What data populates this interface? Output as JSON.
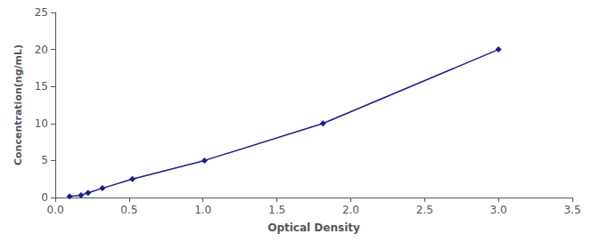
{
  "chart_data": {
    "type": "line",
    "x": [
      0.097,
      0.174,
      0.222,
      0.319,
      0.522,
      1.01,
      1.812,
      3.0
    ],
    "values": [
      0.156,
      0.312,
      0.625,
      1.25,
      2.5,
      5.0,
      10.0,
      20.0
    ],
    "color": "#1c1c8c",
    "marker": "diamond",
    "xlabel": "Optical Density",
    "ylabel": "Concentration(ng/mL)",
    "xlim": [
      0,
      3.5
    ],
    "ylim": [
      0,
      25
    ],
    "xticks": [
      {
        "value": 0,
        "label": "0.0"
      },
      0.5,
      {
        "value": 1.0,
        "label": "1.0"
      },
      1.5,
      {
        "value": 2.0,
        "label": "2.0"
      },
      2.5,
      {
        "value": 3.0,
        "label": "3.0"
      },
      3.5
    ],
    "yticks": [
      0,
      5,
      10,
      15,
      20,
      25
    ],
    "grid": false
  }
}
